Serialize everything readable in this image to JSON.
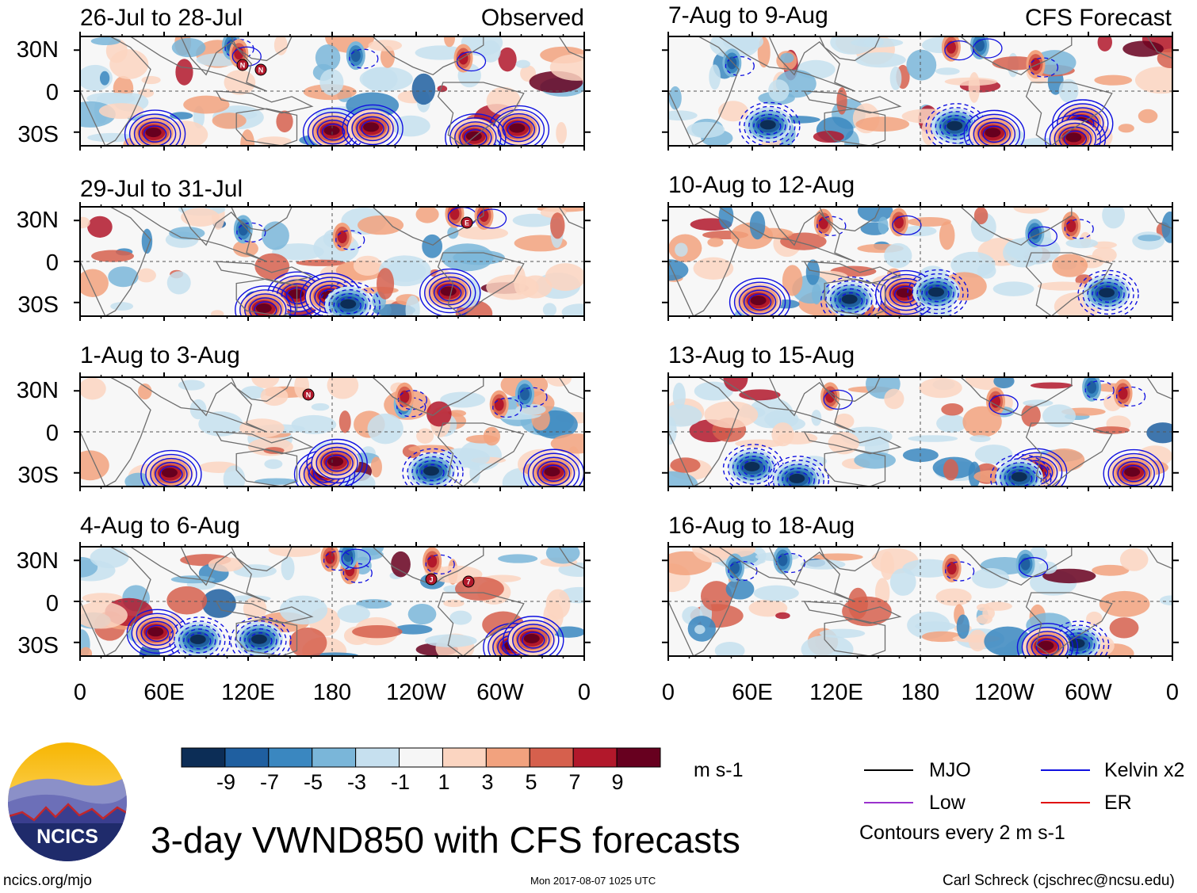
{
  "chart_data": {
    "type": "heatmap",
    "title": "3-day VWND850 with CFS forecasts",
    "variable": "VWND850",
    "units": "m s-1",
    "x_axis": {
      "labels": [
        "0",
        "60E",
        "120E",
        "180",
        "120W",
        "60W",
        "0"
      ],
      "range_deg": [
        0,
        360
      ]
    },
    "y_axis": {
      "labels": [
        "30N",
        "0",
        "30S"
      ],
      "range_deg": [
        -40,
        40
      ]
    },
    "columns": [
      {
        "label": "Observed",
        "panels": [
          "26-Jul to 28-Jul",
          "29-Jul to 31-Jul",
          "1-Aug to 3-Aug",
          "4-Aug to 6-Aug"
        ]
      },
      {
        "label": "CFS Forecast",
        "panels": [
          "7-Aug to 9-Aug",
          "10-Aug to 12-Aug",
          "13-Aug to 15-Aug",
          "16-Aug to 18-Aug"
        ]
      }
    ],
    "colorbar": {
      "labels": [
        "-9",
        "-7",
        "-5",
        "-3",
        "-1",
        "1",
        "3",
        "5",
        "7",
        "9"
      ],
      "colors": [
        "#0c2d56",
        "#1f5fa0",
        "#3a87c0",
        "#7ab6d9",
        "#c6e0ef",
        "#f6f6f6",
        "#fbd5c1",
        "#f2a27e",
        "#d6604d",
        "#b2182b",
        "#67001f"
      ]
    },
    "legend": [
      {
        "label": "MJO",
        "color": "#000000"
      },
      {
        "label": "Kelvin x2",
        "color": "#1010e0"
      },
      {
        "label": "Low",
        "color": "#9a32cd"
      },
      {
        "label": "ER",
        "color": "#e01010"
      }
    ],
    "contour_note": "Contours every 2 m s-1"
  },
  "storm_markers": [
    {
      "panel": 0,
      "letters": [
        "N",
        "N"
      ]
    },
    {
      "panel": 1,
      "letters": [
        "E"
      ]
    },
    {
      "panel": 2,
      "letters": [
        "N"
      ]
    },
    {
      "panel": 3,
      "letters": [
        "J",
        "7"
      ]
    }
  ],
  "branding": {
    "logo_text": "NCICS"
  },
  "footer": {
    "url": "ncics.org/mjo",
    "timestamp": "Mon 2017-08-07 1025 UTC",
    "author": "Carl Schreck (cjschrec@ncsu.edu)"
  }
}
